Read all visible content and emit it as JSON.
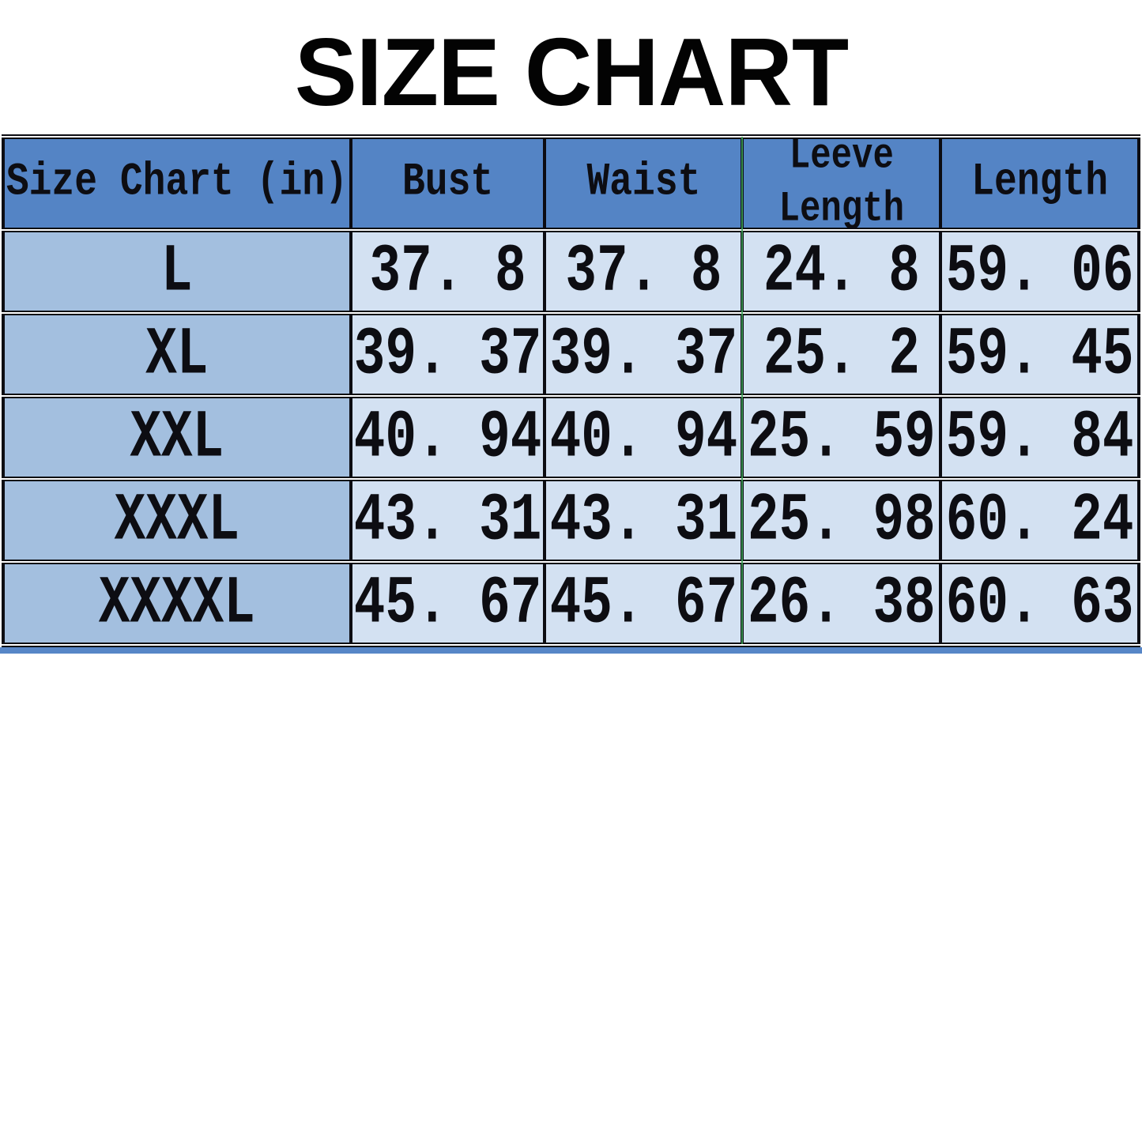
{
  "page": {
    "title": "SIZE CHART"
  },
  "table": {
    "header": {
      "size_col": "Size Chart (in)",
      "bust": "Bust",
      "waist": "Waist",
      "sleeve_line1": "Leeve",
      "sleeve_line2": "Length",
      "length": "Length"
    },
    "rows": [
      {
        "size": "L",
        "bust": "37. 8",
        "waist": "37. 8",
        "sleeve": "24. 8",
        "length": "59. 06"
      },
      {
        "size": "XL",
        "bust": "39. 37",
        "waist": "39. 37",
        "sleeve": "25. 2",
        "length": "59. 45"
      },
      {
        "size": "XXL",
        "bust": "40. 94",
        "waist": "40. 94",
        "sleeve": "25. 59",
        "length": "59. 84"
      },
      {
        "size": "XXXL",
        "bust": "43. 31",
        "waist": "43. 31",
        "sleeve": "25. 98",
        "length": "60. 24"
      },
      {
        "size": "XXXXL",
        "bust": "45. 67",
        "waist": "45. 67",
        "sleeve": "26. 38",
        "length": "60. 63"
      }
    ]
  },
  "colors": {
    "header_bg": "#5484c5",
    "size_column_bg": "#a3bfdf",
    "cell_bg": "#d3e1f2",
    "border": "#0c0c12",
    "accent_bar": "#5786c7",
    "green_line": "#3ea558",
    "title_color": "#030303"
  },
  "chart_data": {
    "type": "table",
    "title": "SIZE CHART",
    "unit": "in",
    "columns": [
      "Size Chart (in)",
      "Bust",
      "Waist",
      "Leeve Length",
      "Length"
    ],
    "sizes": [
      "L",
      "XL",
      "XXL",
      "XXXL",
      "XXXXL"
    ],
    "series": [
      {
        "name": "Bust",
        "values": [
          37.8,
          39.37,
          40.94,
          43.31,
          45.67
        ]
      },
      {
        "name": "Waist",
        "values": [
          37.8,
          39.37,
          40.94,
          43.31,
          45.67
        ]
      },
      {
        "name": "Leeve Length",
        "values": [
          24.8,
          25.2,
          25.59,
          25.98,
          26.38
        ]
      },
      {
        "name": "Length",
        "values": [
          59.06,
          59.45,
          59.84,
          60.24,
          60.63
        ]
      }
    ]
  }
}
